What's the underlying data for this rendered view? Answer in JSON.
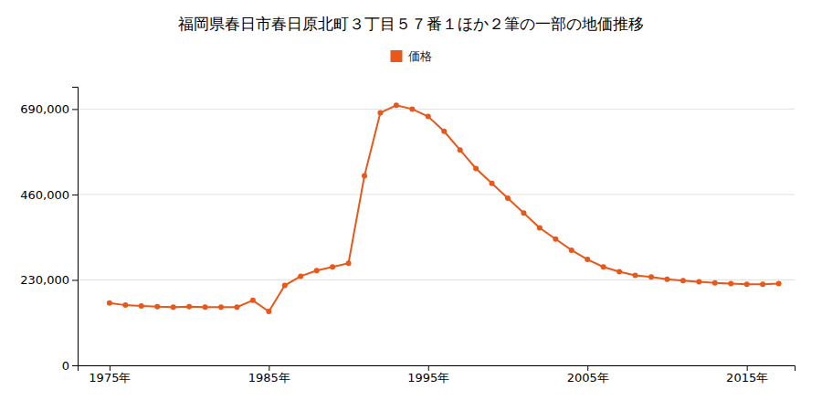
{
  "chart_data": {
    "type": "line",
    "title": "福岡県春日市春日原北町３丁目５７番１ほか２筆の一部の地価推移",
    "x": [
      1975,
      1976,
      1977,
      1978,
      1979,
      1980,
      1981,
      1982,
      1983,
      1984,
      1985,
      1986,
      1987,
      1988,
      1989,
      1990,
      1991,
      1992,
      1993,
      1994,
      1995,
      1996,
      1997,
      1998,
      1999,
      2000,
      2001,
      2002,
      2003,
      2004,
      2005,
      2006,
      2007,
      2008,
      2009,
      2010,
      2011,
      2012,
      2013,
      2014,
      2015,
      2016,
      2017
    ],
    "series": [
      {
        "name": "価格",
        "color": "#E8581A",
        "marker": "circle",
        "line_style": "solid",
        "values": [
          168000,
          162000,
          160000,
          158000,
          157000,
          158000,
          157000,
          157000,
          157000,
          175000,
          145000,
          215000,
          240000,
          255000,
          265000,
          275000,
          510000,
          680000,
          700000,
          690000,
          670000,
          630000,
          580000,
          530000,
          490000,
          450000,
          410000,
          370000,
          340000,
          310000,
          285000,
          265000,
          252000,
          242000,
          238000,
          232000,
          228000,
          225000,
          222000,
          220000,
          218000,
          218000,
          220000
        ]
      }
    ],
    "xlim": [
      1973,
      2018
    ],
    "xticks": [
      {
        "value": 1975,
        "label": "1975年"
      },
      {
        "value": 1985,
        "label": "1985年"
      },
      {
        "value": 1995,
        "label": "1995年"
      },
      {
        "value": 2005,
        "label": "2005年"
      },
      {
        "value": 2015,
        "label": "2015年"
      }
    ],
    "ylim": [
      0,
      750000
    ],
    "yticks": [
      0,
      {
        "value": 230000,
        "label": "230,000"
      },
      {
        "value": 460000,
        "label": "460,000"
      },
      {
        "value": 690000,
        "label": "690,000"
      }
    ],
    "grid": true,
    "legend": "top"
  }
}
